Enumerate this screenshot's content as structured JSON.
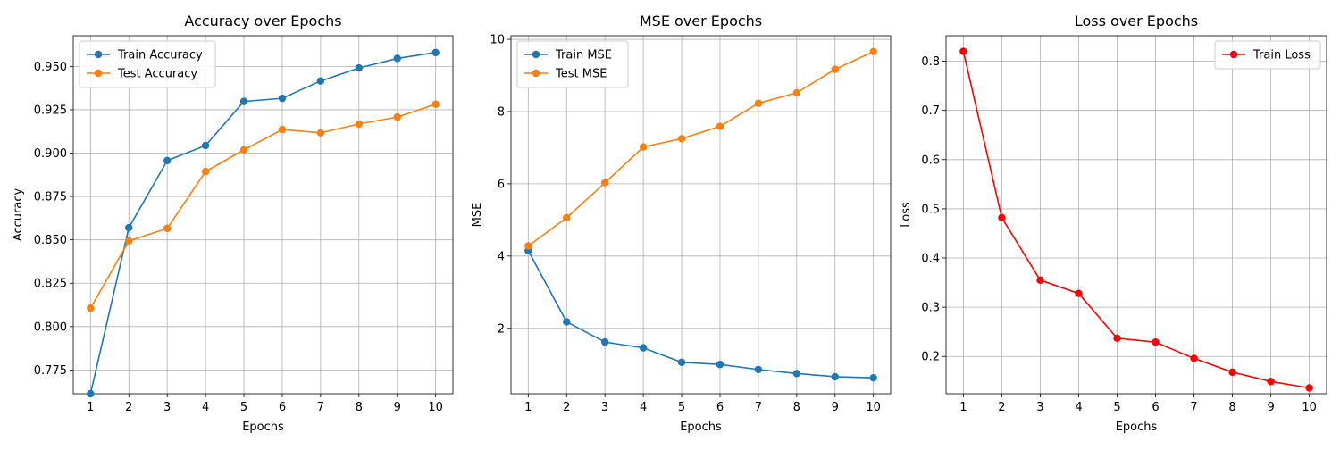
{
  "chart_data": [
    {
      "type": "line",
      "title": "Accuracy over Epochs",
      "xlabel": "Epochs",
      "ylabel": "Accuracy",
      "x": [
        1,
        2,
        3,
        4,
        5,
        6,
        7,
        8,
        9,
        10
      ],
      "xticks": [
        "1",
        "2",
        "3",
        "4",
        "5",
        "6",
        "7",
        "8",
        "9",
        "10"
      ],
      "xlim": [
        0.55,
        10.45
      ],
      "ylim": [
        0.7613,
        0.9677
      ],
      "yticks": [
        0.775,
        0.8,
        0.825,
        0.85,
        0.875,
        0.9,
        0.925,
        0.95
      ],
      "ytick_labels": [
        "0.775",
        "0.800",
        "0.825",
        "0.850",
        "0.875",
        "0.900",
        "0.925",
        "0.950"
      ],
      "grid": true,
      "legend_position": "upper-left",
      "series": [
        {
          "name": "Train Accuracy",
          "color": "#1f77b4",
          "marker": "circle",
          "values": [
            0.7613,
            0.857,
            0.8957,
            0.9044,
            0.9298,
            0.9316,
            0.9416,
            0.9491,
            0.9546,
            0.958
          ]
        },
        {
          "name": "Test Accuracy",
          "color": "#ff7f0e",
          "marker": "circle",
          "values": [
            0.8106,
            0.8494,
            0.8566,
            0.8894,
            0.9019,
            0.9136,
            0.9117,
            0.9168,
            0.9208,
            0.9282
          ]
        }
      ]
    },
    {
      "type": "line",
      "title": "MSE over Epochs",
      "xlabel": "Epochs",
      "ylabel": "MSE",
      "x": [
        1,
        2,
        3,
        4,
        5,
        6,
        7,
        8,
        9,
        10
      ],
      "xticks": [
        "1",
        "2",
        "3",
        "4",
        "5",
        "6",
        "7",
        "8",
        "9",
        "10"
      ],
      "xlim": [
        0.55,
        10.45
      ],
      "ylim": [
        0.19,
        10.1
      ],
      "yticks": [
        2,
        4,
        6,
        8,
        10
      ],
      "ytick_labels": [
        "2",
        "4",
        "6",
        "8",
        "10"
      ],
      "grid": true,
      "legend_position": "upper-left",
      "series": [
        {
          "name": "Train MSE",
          "color": "#1f77b4",
          "marker": "circle",
          "values": [
            4.15,
            2.18,
            1.62,
            1.46,
            1.06,
            1.0,
            0.86,
            0.75,
            0.66,
            0.63
          ]
        },
        {
          "name": "Test MSE",
          "color": "#ff7f0e",
          "marker": "circle",
          "values": [
            4.28,
            5.06,
            6.03,
            7.02,
            7.25,
            7.59,
            8.23,
            8.52,
            9.17,
            9.66
          ]
        }
      ]
    },
    {
      "type": "line",
      "title": "Loss over Epochs",
      "xlabel": "Epochs",
      "ylabel": "Loss",
      "x": [
        1,
        2,
        3,
        4,
        5,
        6,
        7,
        8,
        9,
        10
      ],
      "xticks": [
        "1",
        "2",
        "3",
        "4",
        "5",
        "6",
        "7",
        "8",
        "9",
        "10"
      ],
      "xlim": [
        0.55,
        10.45
      ],
      "ylim": [
        0.1242,
        0.8519
      ],
      "yticks": [
        0.2,
        0.3,
        0.4,
        0.5,
        0.6,
        0.7,
        0.8
      ],
      "ytick_labels": [
        "0.2",
        "0.3",
        "0.4",
        "0.5",
        "0.6",
        "0.7",
        "0.8"
      ],
      "grid": true,
      "legend_position": "upper-right",
      "series": [
        {
          "name": "Train Loss",
          "color": "#ff0000",
          "marker": "circle",
          "values": [
            0.82,
            0.482,
            0.355,
            0.328,
            0.237,
            0.229,
            0.196,
            0.168,
            0.149,
            0.136
          ]
        }
      ]
    }
  ]
}
